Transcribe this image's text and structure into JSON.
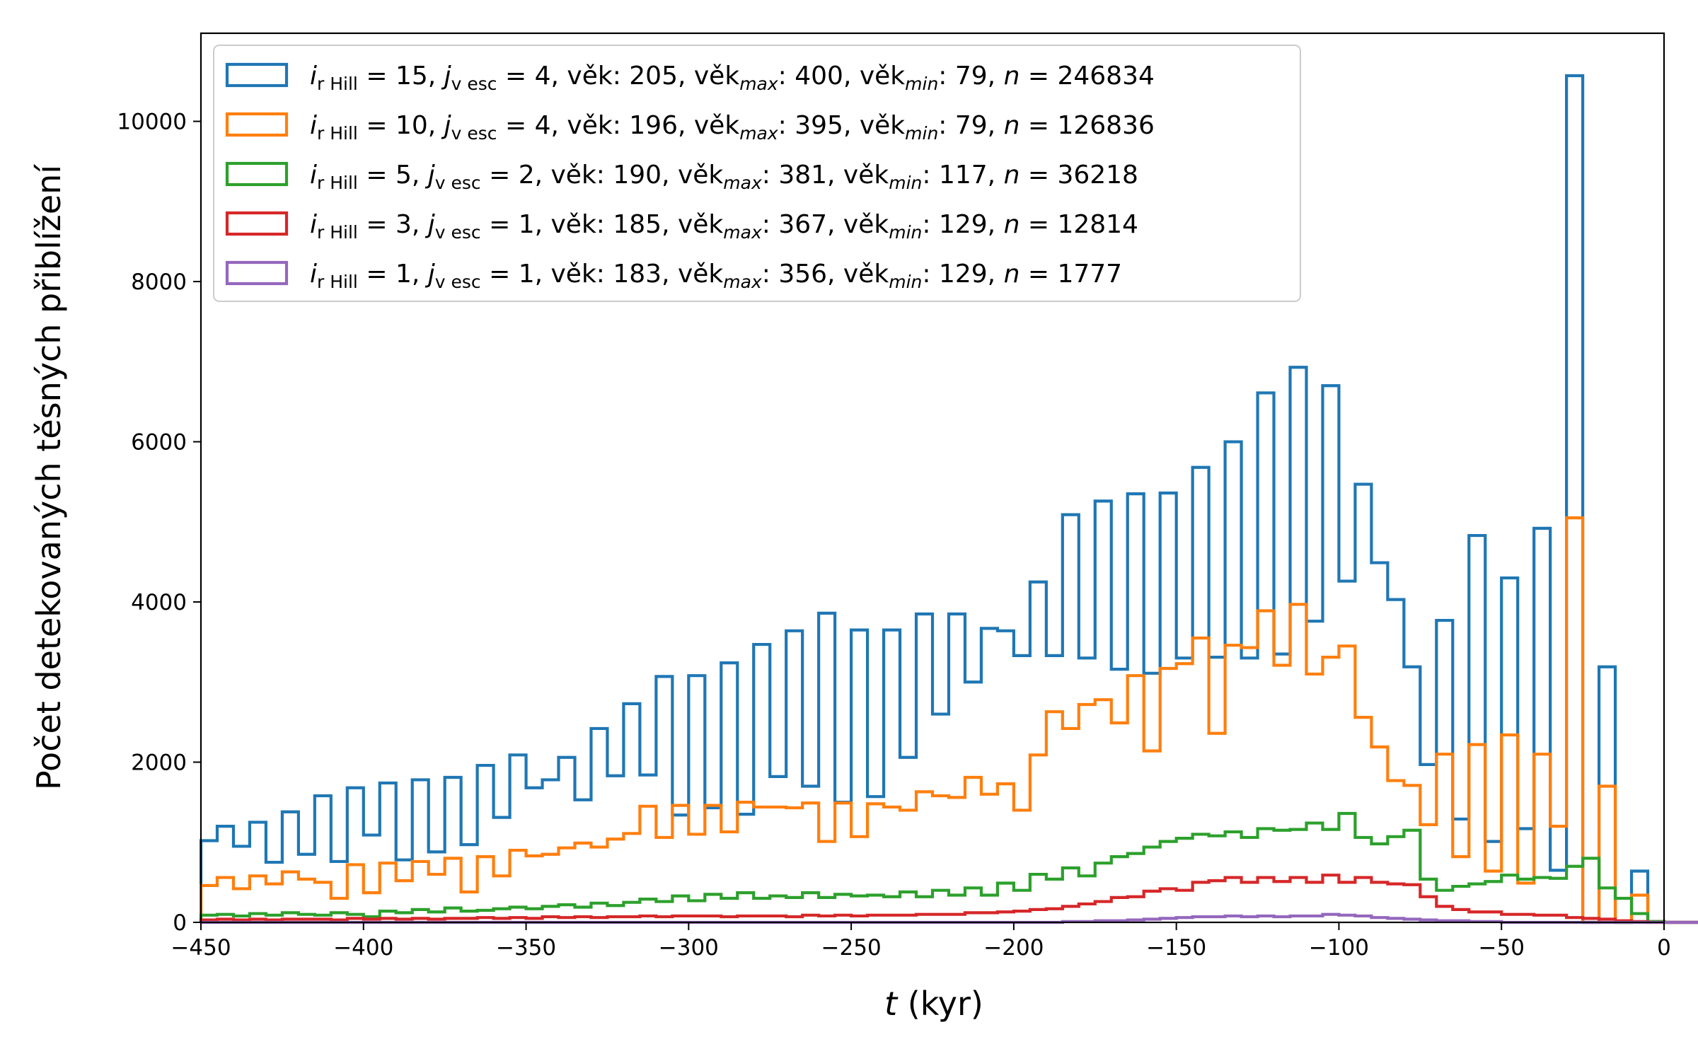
{
  "chart_data": {
    "type": "histogram-step",
    "xlabel_var": "t",
    "xlabel_unit": " (kyr)",
    "ylabel": "Počet detekovaných těsných přiblížení",
    "xlim": [
      -450,
      0
    ],
    "ylim": [
      0,
      11100
    ],
    "xticks": [
      -450,
      -400,
      -350,
      -300,
      -250,
      -200,
      -150,
      -100,
      -50,
      0
    ],
    "xtick_labels": [
      "−450",
      "−400",
      "−350",
      "−300",
      "−250",
      "−200",
      "−150",
      "−100",
      "−50",
      "0"
    ],
    "yticks": [
      0,
      2000,
      4000,
      6000,
      8000,
      10000
    ],
    "ytick_labels": [
      "0",
      "2000",
      "4000",
      "6000",
      "8000",
      "10000"
    ],
    "grid": false,
    "legend_position": "top-left",
    "bin_start": -450,
    "bin_width": 5,
    "series": [
      {
        "legend": {
          "i": "i",
          "i_sub": "r Hill",
          "i_val": " = 15, ",
          "j": "j",
          "j_sub": "v esc",
          "j_val": " = 4, věk: 205, věk",
          "max_sub": "max",
          "max_val": ": 400, věk",
          "min_sub": "min",
          "min_val": ": 79, ",
          "n": "n",
          "n_val": " = 246834"
        },
        "color": "#1f77b4",
        "values": [
          1020,
          1200,
          950,
          1250,
          750,
          1380,
          850,
          1580,
          760,
          1680,
          1090,
          1740,
          780,
          1780,
          880,
          1810,
          970,
          1960,
          1310,
          2090,
          1680,
          1780,
          2060,
          1530,
          2420,
          1830,
          2730,
          1840,
          3070,
          1340,
          3080,
          1430,
          3240,
          1350,
          3470,
          1820,
          3640,
          1700,
          3860,
          1500,
          3650,
          1570,
          3650,
          2060,
          3850,
          2600,
          3850,
          3000,
          3670,
          3640,
          3330,
          4250,
          3330,
          5090,
          3300,
          5260,
          3160,
          5350,
          3110,
          5360,
          3300,
          5680,
          3310,
          6000,
          3300,
          6610,
          3350,
          6930,
          3760,
          6700,
          4260,
          5470,
          4490,
          4030,
          3190,
          1970,
          3770,
          1290,
          4830,
          1010,
          4300,
          1170,
          4920,
          650,
          10570,
          0,
          3190,
          0,
          640,
          10,
          0,
          0,
          0,
          0,
          0,
          0,
          0,
          0,
          0,
          0
        ]
      },
      {
        "legend": {
          "i": "i",
          "i_sub": "r Hill",
          "i_val": " = 10, ",
          "j": "j",
          "j_sub": "v esc",
          "j_val": " = 4, věk: 196, věk",
          "max_sub": "max",
          "max_val": ": 395, věk",
          "min_sub": "min",
          "min_val": ": 79, ",
          "n": "n",
          "n_val": " = 126836"
        },
        "color": "#ff7f0e",
        "values": [
          460,
          560,
          420,
          580,
          480,
          630,
          540,
          500,
          300,
          720,
          370,
          740,
          520,
          760,
          600,
          800,
          380,
          820,
          580,
          900,
          830,
          850,
          930,
          990,
          940,
          1040,
          1110,
          1450,
          1060,
          1460,
          1100,
          1460,
          1130,
          1500,
          1440,
          1440,
          1430,
          1490,
          1010,
          1490,
          1070,
          1480,
          1440,
          1400,
          1630,
          1580,
          1560,
          1810,
          1600,
          1730,
          1400,
          2090,
          2630,
          2420,
          2720,
          2780,
          2490,
          3080,
          2140,
          3170,
          3230,
          3550,
          2360,
          3460,
          3430,
          3890,
          3210,
          3970,
          3100,
          3310,
          3450,
          2560,
          2190,
          1770,
          1710,
          1220,
          2100,
          820,
          2220,
          640,
          2340,
          490,
          2100,
          1200,
          5050,
          0,
          1700,
          0,
          340,
          10,
          0,
          0,
          0,
          0,
          0,
          0,
          0,
          0,
          0,
          0
        ]
      },
      {
        "legend": {
          "i": "i",
          "i_sub": "r Hill",
          "i_val": " =  5, ",
          "j": "j",
          "j_sub": "v esc",
          "j_val": " = 2, věk: 190, věk",
          "max_sub": "max",
          "max_val": ": 381, věk",
          "min_sub": "min",
          "min_val": ": 117, ",
          "n": "n",
          "n_val": " = 36218"
        },
        "color": "#2ca02c",
        "values": [
          90,
          100,
          80,
          110,
          90,
          120,
          100,
          90,
          120,
          100,
          70,
          140,
          120,
          160,
          130,
          180,
          140,
          150,
          170,
          190,
          170,
          200,
          220,
          190,
          240,
          210,
          250,
          290,
          260,
          330,
          270,
          350,
          300,
          370,
          300,
          330,
          310,
          370,
          310,
          350,
          330,
          340,
          320,
          380,
          320,
          400,
          340,
          430,
          340,
          490,
          400,
          600,
          540,
          680,
          580,
          740,
          820,
          860,
          940,
          1010,
          1050,
          1100,
          1080,
          1130,
          1060,
          1170,
          1150,
          1160,
          1240,
          1160,
          1360,
          1060,
          980,
          1070,
          1150,
          540,
          400,
          450,
          480,
          510,
          590,
          540,
          560,
          550,
          700,
          800,
          430,
          300,
          110,
          10,
          0,
          0,
          0,
          0,
          0,
          0,
          0,
          0,
          0,
          0
        ]
      },
      {
        "legend": {
          "i": "i",
          "i_sub": "r Hill",
          "i_val": " =  3, ",
          "j": "j",
          "j_sub": "v esc",
          "j_val": " = 1, věk: 185, věk",
          "max_sub": "max",
          "max_val": ": 367, věk",
          "min_sub": "min",
          "min_val": ": 129, ",
          "n": "n",
          "n_val": " = 12814"
        },
        "color": "#d62728",
        "values": [
          30,
          40,
          30,
          40,
          30,
          40,
          40,
          40,
          30,
          50,
          40,
          50,
          40,
          50,
          40,
          50,
          50,
          60,
          50,
          60,
          50,
          70,
          60,
          70,
          60,
          70,
          70,
          80,
          70,
          80,
          80,
          80,
          70,
          80,
          80,
          80,
          70,
          90,
          80,
          90,
          80,
          90,
          90,
          90,
          100,
          100,
          100,
          120,
          120,
          130,
          140,
          160,
          170,
          200,
          230,
          260,
          310,
          320,
          390,
          420,
          400,
          500,
          520,
          560,
          500,
          560,
          510,
          560,
          500,
          590,
          500,
          560,
          500,
          480,
          470,
          320,
          200,
          160,
          130,
          130,
          100,
          100,
          90,
          90,
          60,
          50,
          40,
          20,
          10,
          0,
          0,
          0,
          0,
          0,
          0,
          0,
          0,
          0,
          0,
          0
        ]
      },
      {
        "legend": {
          "i": "i",
          "i_sub": "r Hill",
          "i_val": " =  1, ",
          "j": "j",
          "j_sub": "v esc",
          "j_val": " = 1, věk: 183, věk",
          "max_sub": "max",
          "max_val": ": 356, věk",
          "min_sub": "min",
          "min_val": ": 129, ",
          "n": "n",
          "n_val": " = 1777"
        },
        "color": "#9467bd",
        "values": [
          0,
          0,
          0,
          0,
          0,
          0,
          0,
          0,
          0,
          0,
          0,
          0,
          0,
          0,
          0,
          0,
          0,
          0,
          0,
          0,
          0,
          0,
          0,
          0,
          0,
          0,
          0,
          0,
          0,
          0,
          0,
          0,
          0,
          0,
          0,
          0,
          0,
          0,
          0,
          0,
          0,
          0,
          0,
          0,
          0,
          0,
          0,
          0,
          0,
          0,
          0,
          0,
          0,
          10,
          10,
          20,
          20,
          30,
          40,
          50,
          60,
          70,
          70,
          80,
          70,
          80,
          70,
          80,
          80,
          100,
          90,
          80,
          60,
          50,
          40,
          30,
          20,
          20,
          10,
          10,
          0,
          0,
          0,
          0,
          0,
          0,
          0,
          0,
          0,
          0,
          0,
          0,
          0,
          0,
          0,
          0,
          0,
          0,
          0,
          0
        ]
      }
    ]
  }
}
